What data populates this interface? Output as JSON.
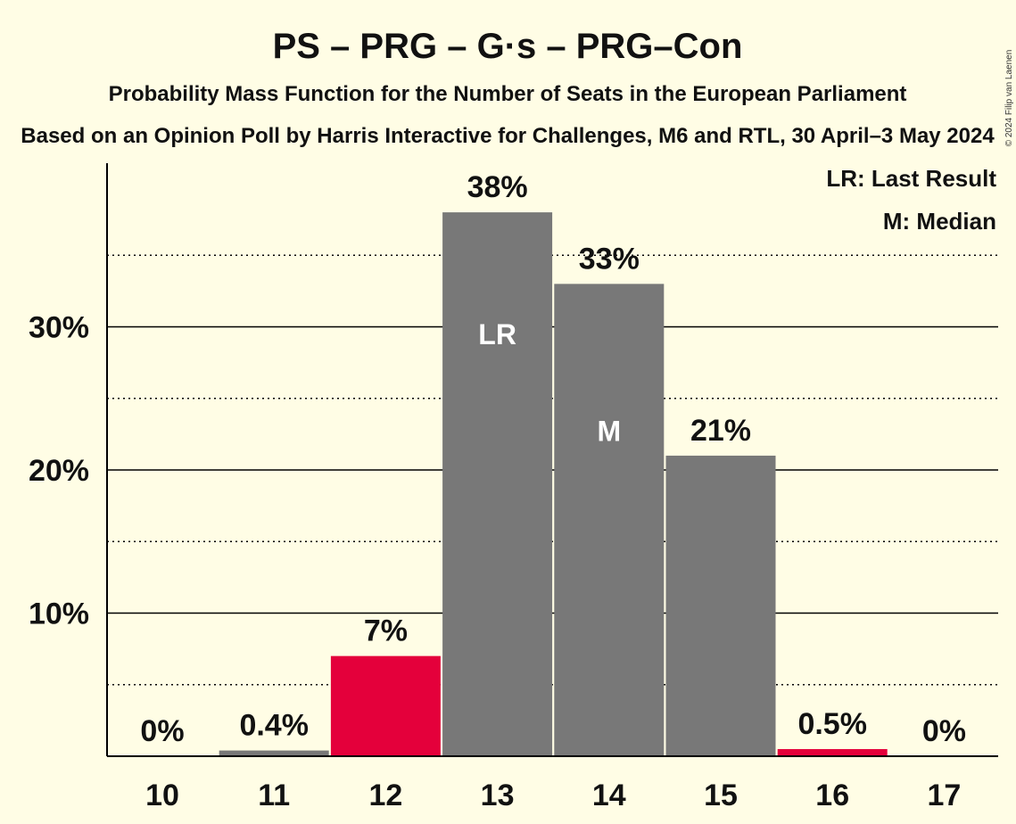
{
  "title": "PS – PRG – G·s – PRG–Con",
  "subtitle": "Probability Mass Function for the Number of Seats in the European Parliament",
  "source_line": "Based on an Opinion Poll by Harris Interactive for Challenges, M6 and RTL, 30 April–3 May 2024",
  "copyright": "© 2024 Filip van Laenen",
  "legend": {
    "last_result": "LR: Last Result",
    "median": "M: Median"
  },
  "colors": {
    "background": "#FFFDE5",
    "party": "#E4003B",
    "likely": "#787878",
    "axis": "#000000"
  },
  "chart_data": {
    "type": "bar",
    "categories": [
      "10",
      "11",
      "12",
      "13",
      "14",
      "15",
      "16",
      "17"
    ],
    "values": [
      0,
      0.4,
      7,
      38,
      33,
      21,
      0.5,
      0
    ],
    "value_labels": [
      "0%",
      "0.4%",
      "7%",
      "38%",
      "33%",
      "21%",
      "0.5%",
      "0%"
    ],
    "bar_colors": [
      "#787878",
      "#787878",
      "#E4003B",
      "#787878",
      "#787878",
      "#787878",
      "#E4003B",
      "#787878"
    ],
    "inbar_labels": [
      "",
      "",
      "",
      "LR",
      "M",
      "",
      "",
      ""
    ],
    "ylim": [
      0,
      40
    ],
    "yticks": [
      10,
      20,
      30
    ],
    "ytick_labels": [
      "10%",
      "20%",
      "30%"
    ],
    "minor_gridlines": [
      5,
      15,
      25,
      35
    ],
    "grid": true,
    "legend_position": "top-right"
  }
}
